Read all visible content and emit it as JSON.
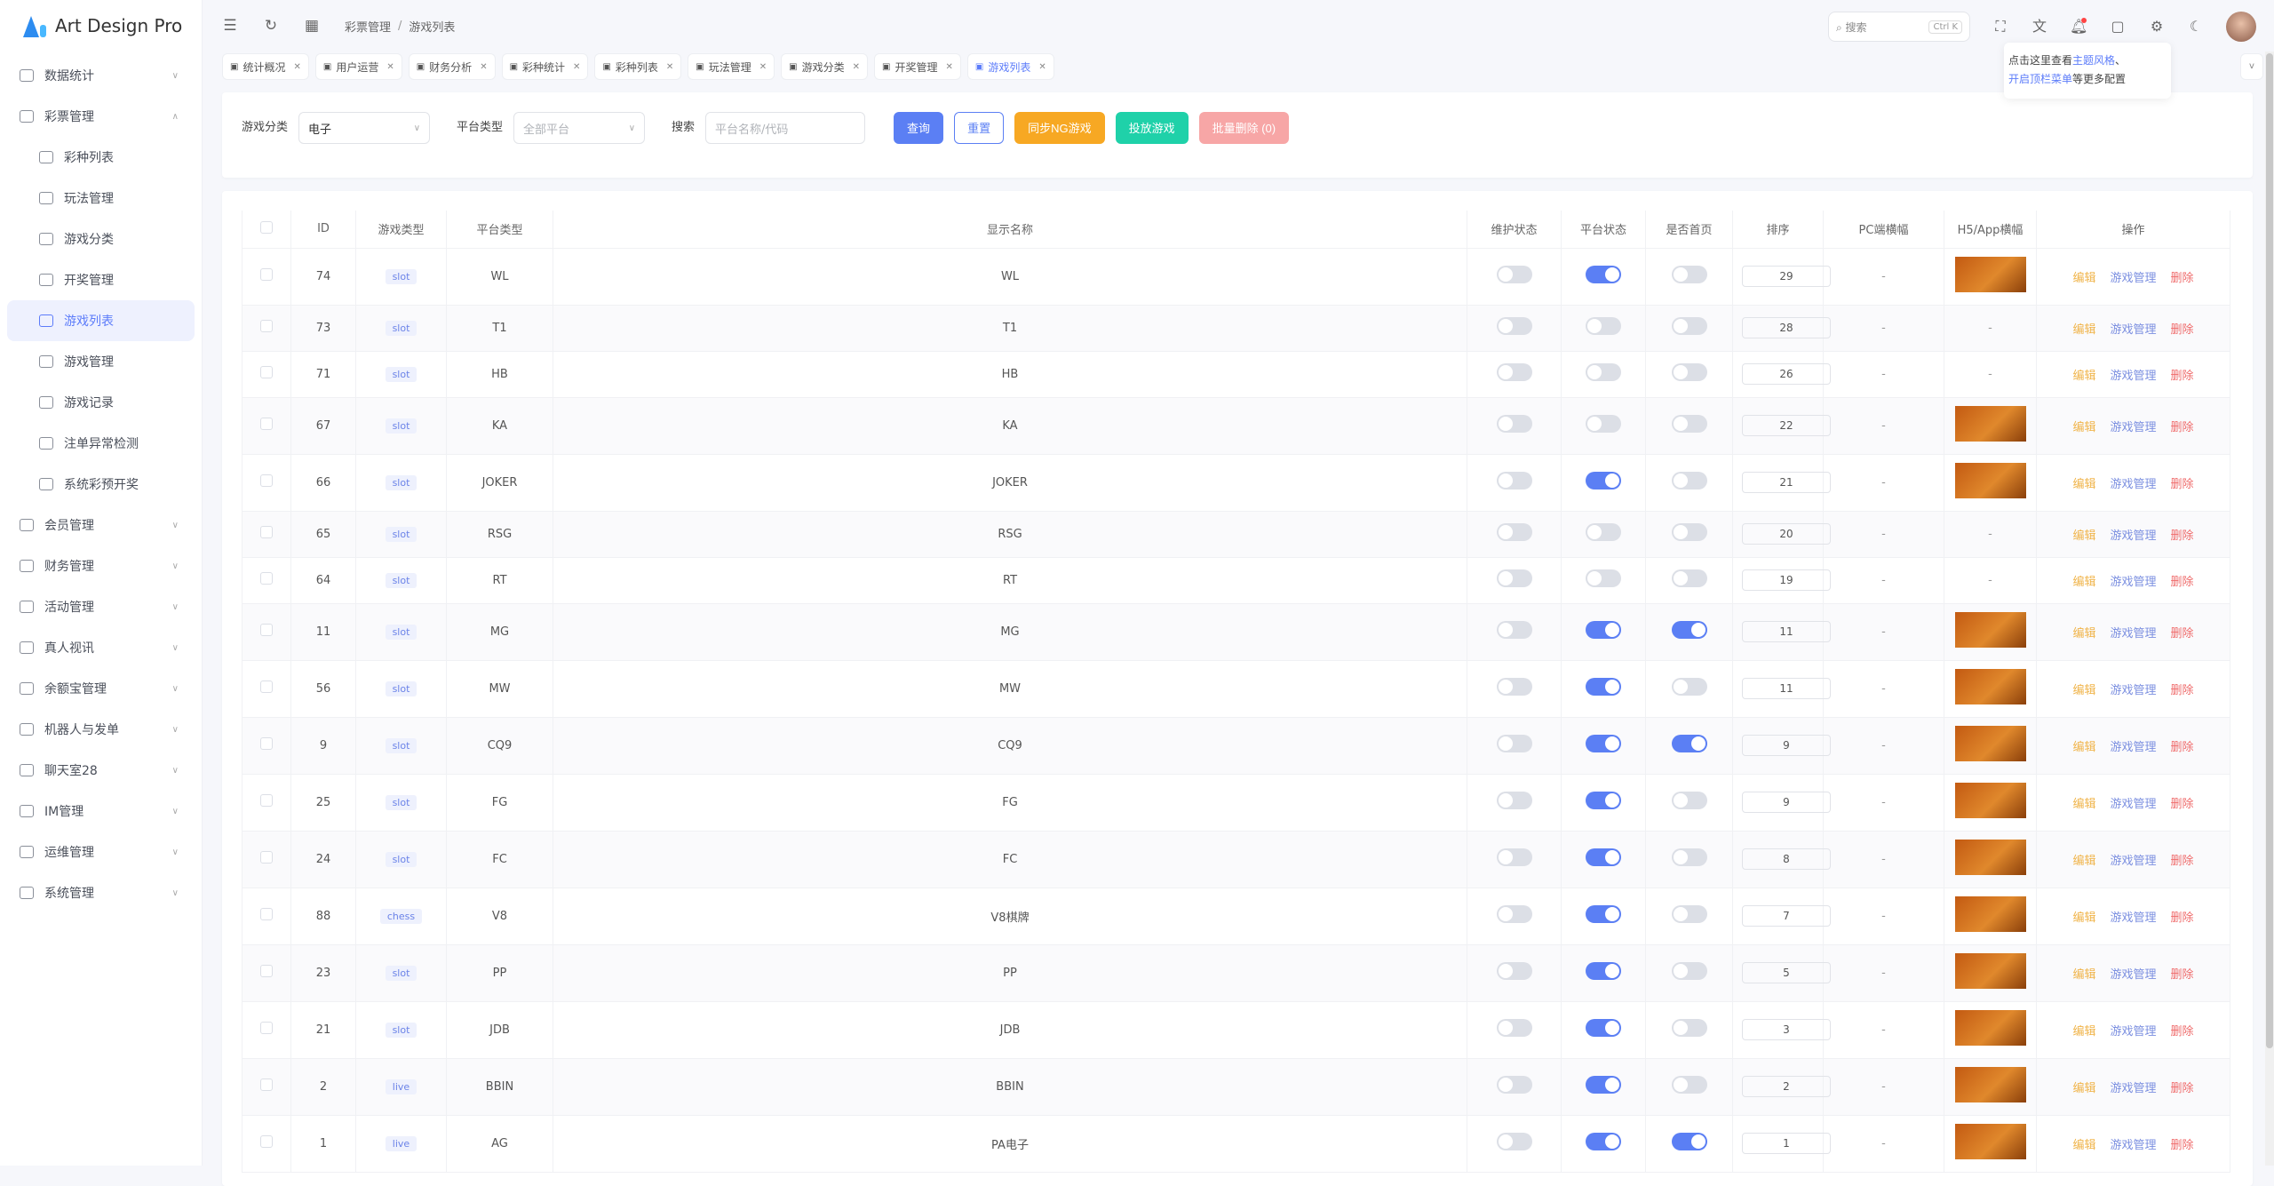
{
  "app": {
    "title": "Art Design Pro"
  },
  "sidebar": {
    "items": [
      {
        "label": "数据统计",
        "expandable": true,
        "icon": "chart-icon"
      },
      {
        "label": "彩票管理",
        "expandable": true,
        "expanded": true,
        "icon": "ticket-icon"
      },
      {
        "label": "彩种列表",
        "sub": true,
        "icon": "list-icon"
      },
      {
        "label": "玩法管理",
        "sub": true,
        "icon": "gamepad-icon"
      },
      {
        "label": "游戏分类",
        "sub": true,
        "icon": "grid-icon"
      },
      {
        "label": "开奖管理",
        "sub": true,
        "icon": "calendar-icon"
      },
      {
        "label": "游戏列表",
        "sub": true,
        "active": true,
        "icon": "gamepad-icon"
      },
      {
        "label": "游戏管理",
        "sub": true,
        "icon": "gamepad-icon"
      },
      {
        "label": "游戏记录",
        "sub": true,
        "icon": "record-icon"
      },
      {
        "label": "注单异常检测",
        "sub": true,
        "icon": "alarm-icon"
      },
      {
        "label": "系统彩预开奖",
        "sub": true,
        "icon": "gift-icon"
      },
      {
        "label": "会员管理",
        "expandable": true,
        "icon": "user-icon"
      },
      {
        "label": "财务管理",
        "expandable": true,
        "icon": "wallet-icon"
      },
      {
        "label": "活动管理",
        "expandable": true,
        "icon": "gift-icon"
      },
      {
        "label": "真人视讯",
        "expandable": true,
        "icon": "gamepad-icon"
      },
      {
        "label": "余额宝管理",
        "expandable": true,
        "icon": "yen-icon"
      },
      {
        "label": "机器人与发单",
        "expandable": true,
        "icon": "robot-icon"
      },
      {
        "label": "聊天室28",
        "expandable": true,
        "icon": "chat-icon"
      },
      {
        "label": "IM管理",
        "expandable": true,
        "icon": "message-icon"
      },
      {
        "label": "运维管理",
        "expandable": true,
        "icon": "tools-icon"
      },
      {
        "label": "系统管理",
        "expandable": true,
        "icon": "user-icon"
      }
    ]
  },
  "header": {
    "breadcrumb": [
      "彩票管理",
      "游戏列表"
    ],
    "search_placeholder": "搜索",
    "search_shortcut": "Ctrl K"
  },
  "tooltip": {
    "text1": "点击这里查看",
    "link1": "主题风格",
    "text2": "、",
    "link2": "开启顶栏菜单",
    "text3": "等更多配置"
  },
  "tabs": [
    {
      "label": "统计概况"
    },
    {
      "label": "用户运营"
    },
    {
      "label": "财务分析"
    },
    {
      "label": "彩种统计"
    },
    {
      "label": "彩种列表"
    },
    {
      "label": "玩法管理"
    },
    {
      "label": "游戏分类"
    },
    {
      "label": "开奖管理"
    },
    {
      "label": "游戏列表",
      "active": true
    }
  ],
  "filter": {
    "category_label": "游戏分类",
    "category_value": "电子",
    "platform_label": "平台类型",
    "platform_placeholder": "全部平台",
    "search_label": "搜索",
    "search_placeholder": "平台名称/代码",
    "buttons": {
      "query": "查询",
      "reset": "重置",
      "sync": "同步NG游戏",
      "launch": "投放游戏",
      "batch_delete": "批量删除 (0)"
    }
  },
  "colors": {
    "primary": "#5b7ff4",
    "warning": "#f7a823",
    "success": "#1fd1a9",
    "danger_light": "#f7a6a6",
    "edit": "#f0b44a",
    "manage": "#7b8fe0",
    "delete": "#ef6b6b"
  },
  "table": {
    "columns": [
      "ID",
      "游戏类型",
      "平台类型",
      "显示名称",
      "维护状态",
      "平台状态",
      "是否首页",
      "排序",
      "PC端横幅",
      "H5/App横幅",
      "操作"
    ],
    "actions": {
      "edit": "编辑",
      "manage": "游戏管理",
      "delete": "删除"
    },
    "empty": "-",
    "rows": [
      {
        "id": "74",
        "type": "slot",
        "platform": "WL",
        "name": "WL",
        "maint": false,
        "status": true,
        "home": false,
        "sort": "29",
        "pc": "-",
        "h5": true
      },
      {
        "id": "73",
        "type": "slot",
        "platform": "T1",
        "name": "T1",
        "maint": false,
        "status": false,
        "home": false,
        "sort": "28",
        "pc": "-",
        "h5": false
      },
      {
        "id": "71",
        "type": "slot",
        "platform": "HB",
        "name": "HB",
        "maint": false,
        "status": false,
        "home": false,
        "sort": "26",
        "pc": "-",
        "h5": false
      },
      {
        "id": "67",
        "type": "slot",
        "platform": "KA",
        "name": "KA",
        "maint": false,
        "status": false,
        "home": false,
        "sort": "22",
        "pc": "-",
        "h5": true
      },
      {
        "id": "66",
        "type": "slot",
        "platform": "JOKER",
        "name": "JOKER",
        "maint": false,
        "status": true,
        "home": false,
        "sort": "21",
        "pc": "-",
        "h5": true
      },
      {
        "id": "65",
        "type": "slot",
        "platform": "RSG",
        "name": "RSG",
        "maint": false,
        "status": false,
        "home": false,
        "sort": "20",
        "pc": "-",
        "h5": false
      },
      {
        "id": "64",
        "type": "slot",
        "platform": "RT",
        "name": "RT",
        "maint": false,
        "status": false,
        "home": false,
        "sort": "19",
        "pc": "-",
        "h5": false
      },
      {
        "id": "11",
        "type": "slot",
        "platform": "MG",
        "name": "MG",
        "maint": false,
        "status": true,
        "home": true,
        "sort": "11",
        "pc": "-",
        "h5": true
      },
      {
        "id": "56",
        "type": "slot",
        "platform": "MW",
        "name": "MW",
        "maint": false,
        "status": true,
        "home": false,
        "sort": "11",
        "pc": "-",
        "h5": true
      },
      {
        "id": "9",
        "type": "slot",
        "platform": "CQ9",
        "name": "CQ9",
        "maint": false,
        "status": true,
        "home": true,
        "sort": "9",
        "pc": "-",
        "h5": true
      },
      {
        "id": "25",
        "type": "slot",
        "platform": "FG",
        "name": "FG",
        "maint": false,
        "status": true,
        "home": false,
        "sort": "9",
        "pc": "-",
        "h5": true
      },
      {
        "id": "24",
        "type": "slot",
        "platform": "FC",
        "name": "FC",
        "maint": false,
        "status": true,
        "home": false,
        "sort": "8",
        "pc": "-",
        "h5": true
      },
      {
        "id": "88",
        "type": "chess",
        "platform": "V8",
        "name": "V8棋牌",
        "maint": false,
        "status": true,
        "home": false,
        "sort": "7",
        "pc": "-",
        "h5": true
      },
      {
        "id": "23",
        "type": "slot",
        "platform": "PP",
        "name": "PP",
        "maint": false,
        "status": true,
        "home": false,
        "sort": "5",
        "pc": "-",
        "h5": true
      },
      {
        "id": "21",
        "type": "slot",
        "platform": "JDB",
        "name": "JDB",
        "maint": false,
        "status": true,
        "home": false,
        "sort": "3",
        "pc": "-",
        "h5": true
      },
      {
        "id": "2",
        "type": "live",
        "platform": "BBIN",
        "name": "BBIN",
        "maint": false,
        "status": true,
        "home": false,
        "sort": "2",
        "pc": "-",
        "h5": true
      },
      {
        "id": "1",
        "type": "live",
        "platform": "AG",
        "name": "PA电子",
        "maint": false,
        "status": true,
        "home": true,
        "sort": "1",
        "pc": "-",
        "h5": true
      }
    ]
  }
}
